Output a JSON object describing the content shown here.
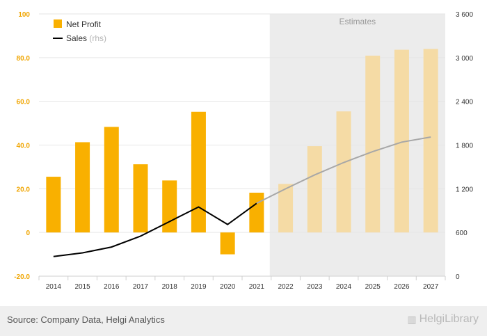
{
  "chart_data": {
    "type": "bar+line",
    "categories": [
      "2014",
      "2015",
      "2016",
      "2017",
      "2018",
      "2019",
      "2020",
      "2021",
      "2022",
      "2023",
      "2024",
      "2025",
      "2026",
      "2027"
    ],
    "estimate_start_index": 8,
    "estimates_label": "Estimates",
    "series": [
      {
        "name": "Net Profit",
        "type": "bar",
        "axis": "left",
        "values": [
          25.5,
          41.3,
          48.3,
          31.2,
          23.8,
          55.2,
          -10.0,
          18.2,
          22.2,
          39.5,
          55.4,
          80.9,
          83.6,
          84.0
        ]
      },
      {
        "name": "Sales",
        "name_suffix": "(rhs)",
        "type": "line",
        "axis": "right",
        "values": [
          270,
          320,
          400,
          550,
          750,
          950,
          710,
          1000,
          1200,
          1390,
          1560,
          1710,
          1840,
          1910
        ]
      }
    ],
    "y_left": {
      "min": -20,
      "max": 100,
      "ticks": [
        "-20.0",
        "0",
        "20.0",
        "40.0",
        "60.0",
        "80.0",
        "100"
      ]
    },
    "y_right": {
      "min": 0,
      "max": 3600,
      "ticks": [
        "0",
        "600",
        "1 200",
        "1 800",
        "2 400",
        "3 000",
        "3 600"
      ]
    },
    "legend_position": "top-left",
    "grid": "horizontal"
  },
  "colors": {
    "bar_actual": "#f9b000",
    "bar_estimate": "#f5dba5",
    "line_actual": "#000000",
    "line_estimate": "#a7a7a7",
    "estimate_band": "#ececec",
    "left_axis_text": "#f0a500",
    "right_axis_text": "#333333"
  },
  "footer": {
    "source": "Source: Company Data, Helgi Analytics",
    "brand": "HelgiLibrary"
  }
}
